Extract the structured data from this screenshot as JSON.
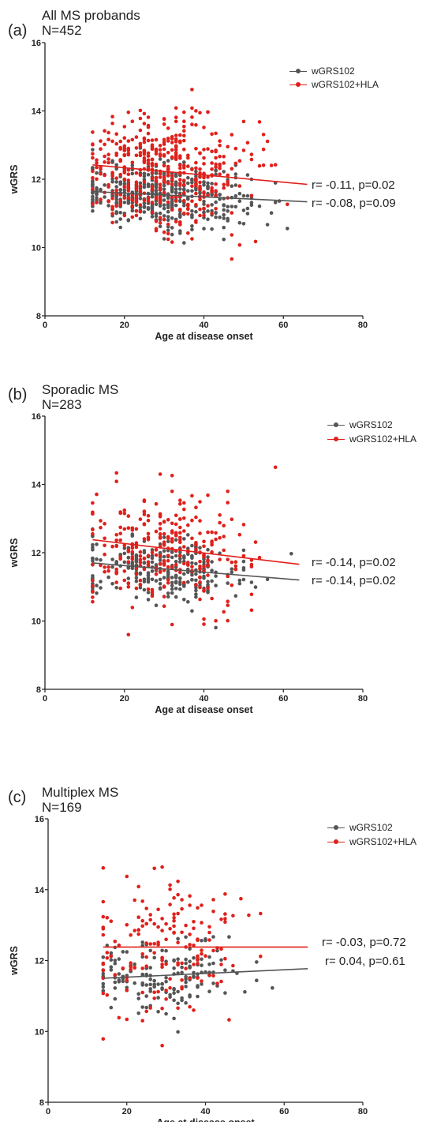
{
  "colors": {
    "base": "#555555",
    "hla": "#e0201b"
  },
  "chart_data": [
    {
      "type": "scatter",
      "panel_label": "(a)",
      "title": "All MS probands",
      "subtitle": "N=452",
      "xlabel": "Age at disease onset",
      "ylabel": "wGRS",
      "xlim": [
        0,
        80
      ],
      "ylim": [
        8,
        16
      ],
      "xticks": [
        "0",
        "20",
        "40",
        "60",
        "80"
      ],
      "yticks": [
        "8",
        "10",
        "12",
        "14",
        "16"
      ],
      "legend": [
        "wGRS102",
        "wGRS102+HLA"
      ],
      "legend_position": "top-right",
      "x_range": [
        12,
        66
      ],
      "series": [
        {
          "name": "wGRS102",
          "color": "#555555",
          "n_points": 452,
          "y_mean": 11.5,
          "y_sd": 0.45,
          "trend": {
            "x": [
              12,
              66
            ],
            "y": [
              11.64,
              11.34
            ]
          }
        },
        {
          "name": "wGRS102+HLA",
          "color": "#e0201b",
          "n_points": 452,
          "y_mean": 12.05,
          "y_sd": 0.85,
          "trend": {
            "x": [
              12,
              66
            ],
            "y": [
              12.42,
              11.85
            ]
          }
        }
      ],
      "annotations": [
        {
          "text": "r= -0.11, p=0.02",
          "series": "wGRS102+HLA"
        },
        {
          "text": "r= -0.08, p=0.09",
          "series": "wGRS102"
        }
      ]
    },
    {
      "type": "scatter",
      "panel_label": "(b)",
      "title": "Sporadic MS",
      "subtitle": "N=283",
      "xlabel": "Age at disease onset",
      "ylabel": "wGRS",
      "xlim": [
        0,
        80
      ],
      "ylim": [
        8,
        16
      ],
      "xticks": [
        "0",
        "20",
        "40",
        "60",
        "80"
      ],
      "yticks": [
        "8",
        "10",
        "12",
        "14",
        "16"
      ],
      "legend": [
        "wGRS102",
        "wGRS102+HLA"
      ],
      "legend_position": "top-right",
      "x_range": [
        12,
        64
      ],
      "series": [
        {
          "name": "wGRS102",
          "color": "#555555",
          "n_points": 283,
          "y_mean": 11.5,
          "y_sd": 0.45,
          "trend": {
            "x": [
              12,
              64
            ],
            "y": [
              11.7,
              11.2
            ]
          }
        },
        {
          "name": "wGRS102+HLA",
          "color": "#e0201b",
          "n_points": 283,
          "y_mean": 12.05,
          "y_sd": 0.85,
          "trend": {
            "x": [
              12,
              64
            ],
            "y": [
              12.38,
              11.66
            ]
          }
        }
      ],
      "annotations": [
        {
          "text": "r= -0.14, p=0.02",
          "series": "wGRS102+HLA"
        },
        {
          "text": "r= -0.14, p=0.02",
          "series": "wGRS102"
        }
      ]
    },
    {
      "type": "scatter",
      "panel_label": "(c)",
      "title": "Multiplex MS",
      "subtitle": "N=169",
      "xlabel": "Age at disease onset",
      "ylabel": "wGRS",
      "xlim": [
        0,
        80
      ],
      "ylim": [
        8,
        16
      ],
      "xticks": [
        "0",
        "20",
        "40",
        "60",
        "80"
      ],
      "yticks": [
        "8",
        "10",
        "12",
        "14",
        "16"
      ],
      "legend": [
        "wGRS102",
        "wGRS102+HLA"
      ],
      "legend_position": "top-right",
      "x_range": [
        14,
        66
      ],
      "series": [
        {
          "name": "wGRS102",
          "color": "#555555",
          "n_points": 169,
          "y_mean": 11.6,
          "y_sd": 0.5,
          "trend": {
            "x": [
              14,
              66
            ],
            "y": [
              11.5,
              11.77
            ]
          }
        },
        {
          "name": "wGRS102+HLA",
          "color": "#e0201b",
          "n_points": 169,
          "y_mean": 12.3,
          "y_sd": 0.95,
          "trend": {
            "x": [
              14,
              66
            ],
            "y": [
              12.38,
              12.38
            ]
          }
        }
      ],
      "annotations": [
        {
          "text": "r= -0.03, p=0.72",
          "series": "wGRS102+HLA"
        },
        {
          "text": "r= 0.04, p=0.61",
          "series": "wGRS102"
        }
      ]
    }
  ]
}
